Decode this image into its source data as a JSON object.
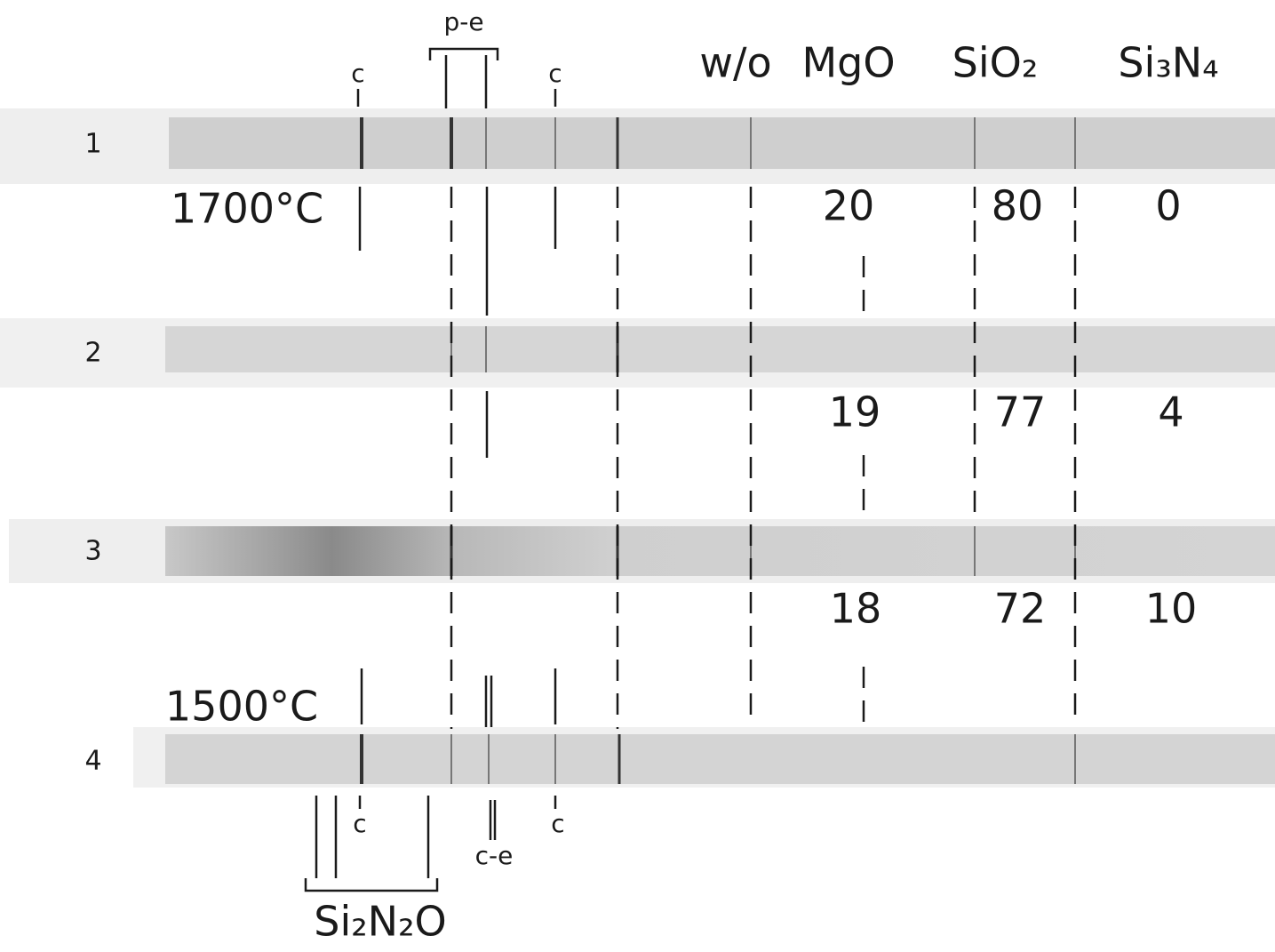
{
  "header": {
    "phases": [
      "w/o",
      "MgO",
      "SiO₂",
      "Si₃N₄"
    ]
  },
  "annotations": {
    "top_c1": "c",
    "top_pe": "p-e",
    "top_c2": "c",
    "bottom_c1": "c",
    "bottom_ce": "c-e",
    "bottom_c2": "c",
    "bottom_phase": "Si₂N₂O"
  },
  "temperatures": [
    "1700°C",
    "1500°C"
  ],
  "rows": [
    "1",
    "2",
    "3",
    "4"
  ],
  "compositions": [
    [
      20,
      80,
      0
    ],
    [
      19,
      77,
      4
    ],
    [
      18,
      72,
      10
    ]
  ]
}
